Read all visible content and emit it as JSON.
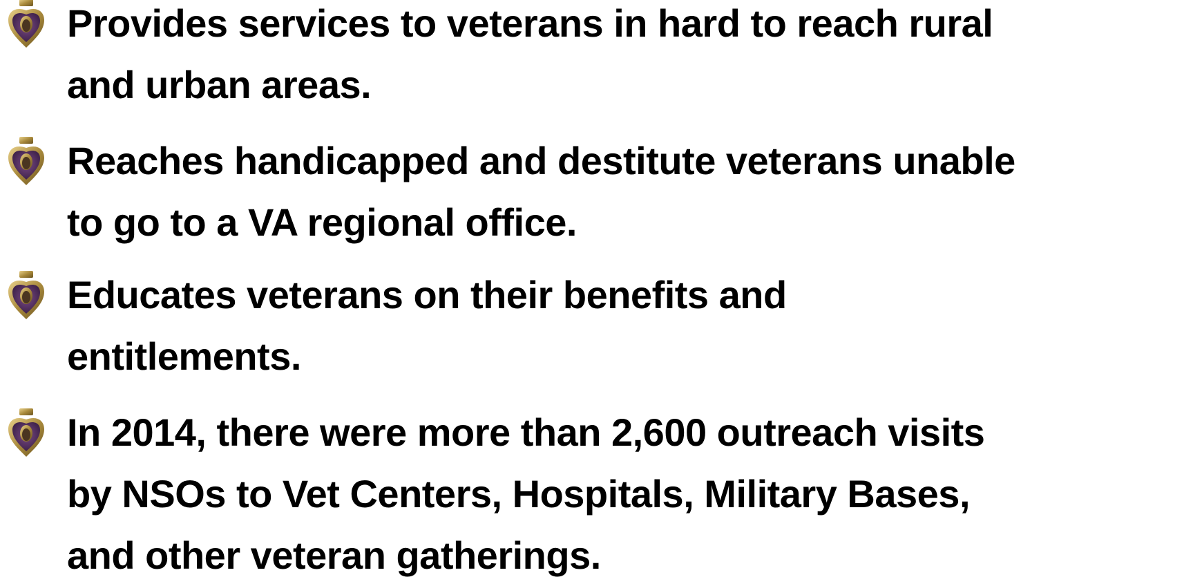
{
  "bullets": [
    {
      "lines": [
        "Provides services to veterans in hard to reach rural",
        "and urban areas."
      ]
    },
    {
      "lines": [
        "Reaches handicapped and destitute veterans unable",
        "to go to a VA regional office."
      ]
    },
    {
      "lines": [
        "Educates veterans on their benefits and",
        "entitlements."
      ]
    },
    {
      "lines": [
        "In 2014, there were more than 2,600 outreach visits",
        "by NSOs to Vet Centers, Hospitals, Military Bases,",
        "and other veteran gatherings."
      ]
    }
  ]
}
